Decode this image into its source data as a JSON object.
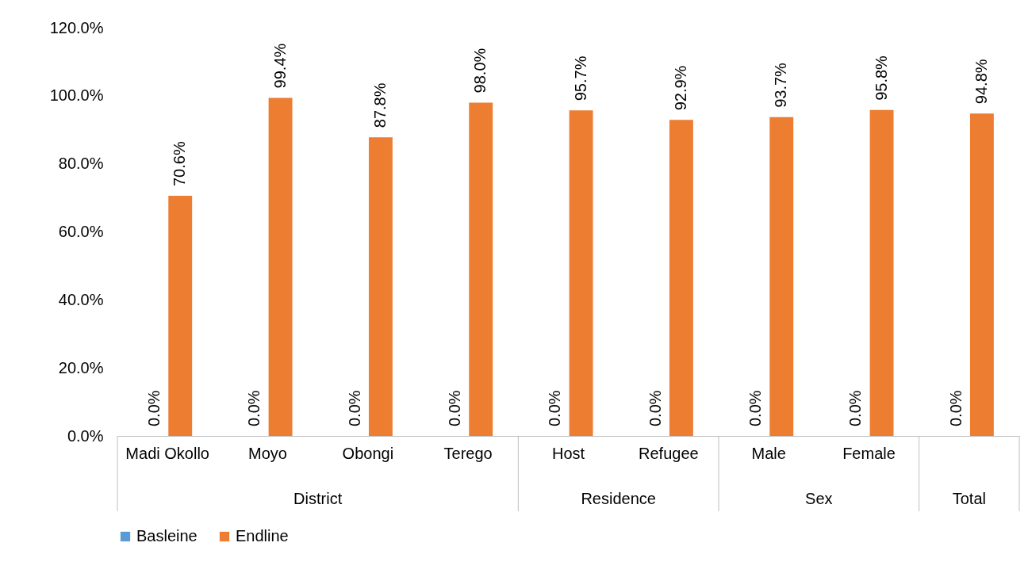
{
  "chart_data": {
    "type": "bar",
    "categories": [
      "Madi Okollo",
      "Moyo",
      "Obongi",
      "Terego",
      "Host",
      "Refugee",
      "Male",
      "Female",
      null
    ],
    "series": [
      {
        "name": "Basleine",
        "color": "#5b9bd5",
        "values": [
          0,
          0,
          0,
          0,
          0,
          0,
          0,
          0,
          0
        ],
        "value_labels": [
          "0.0%",
          "0.0%",
          "0.0%",
          "0.0%",
          "0.0%",
          "0.0%",
          "0.0%",
          "0.0%",
          "0.0%"
        ]
      },
      {
        "name": "Endline",
        "color": "#ed7d31",
        "values": [
          70.6,
          99.4,
          87.8,
          98.0,
          95.7,
          92.9,
          93.7,
          95.8,
          94.8
        ],
        "value_labels": [
          "70.6%",
          "99.4%",
          "87.8%",
          "98.0%",
          "95.7%",
          "92.9%",
          "93.7%",
          "95.8%",
          "94.8%"
        ]
      }
    ],
    "annotations": [
      "District",
      "Residence",
      "Sex",
      "Total"
    ],
    "ylim": [
      0,
      120
    ],
    "yticks": [
      {
        "value": 0,
        "label": "0.0%"
      },
      {
        "value": 20,
        "label": "20.0%"
      },
      {
        "value": 40,
        "label": "40.0%"
      },
      {
        "value": 60,
        "label": "60.0%"
      },
      {
        "value": 80,
        "label": "80.0%"
      },
      {
        "value": 100,
        "label": "100.0%"
      },
      {
        "value": 120,
        "label": "120.0%"
      }
    ],
    "grid": false,
    "legend": "bottom"
  }
}
